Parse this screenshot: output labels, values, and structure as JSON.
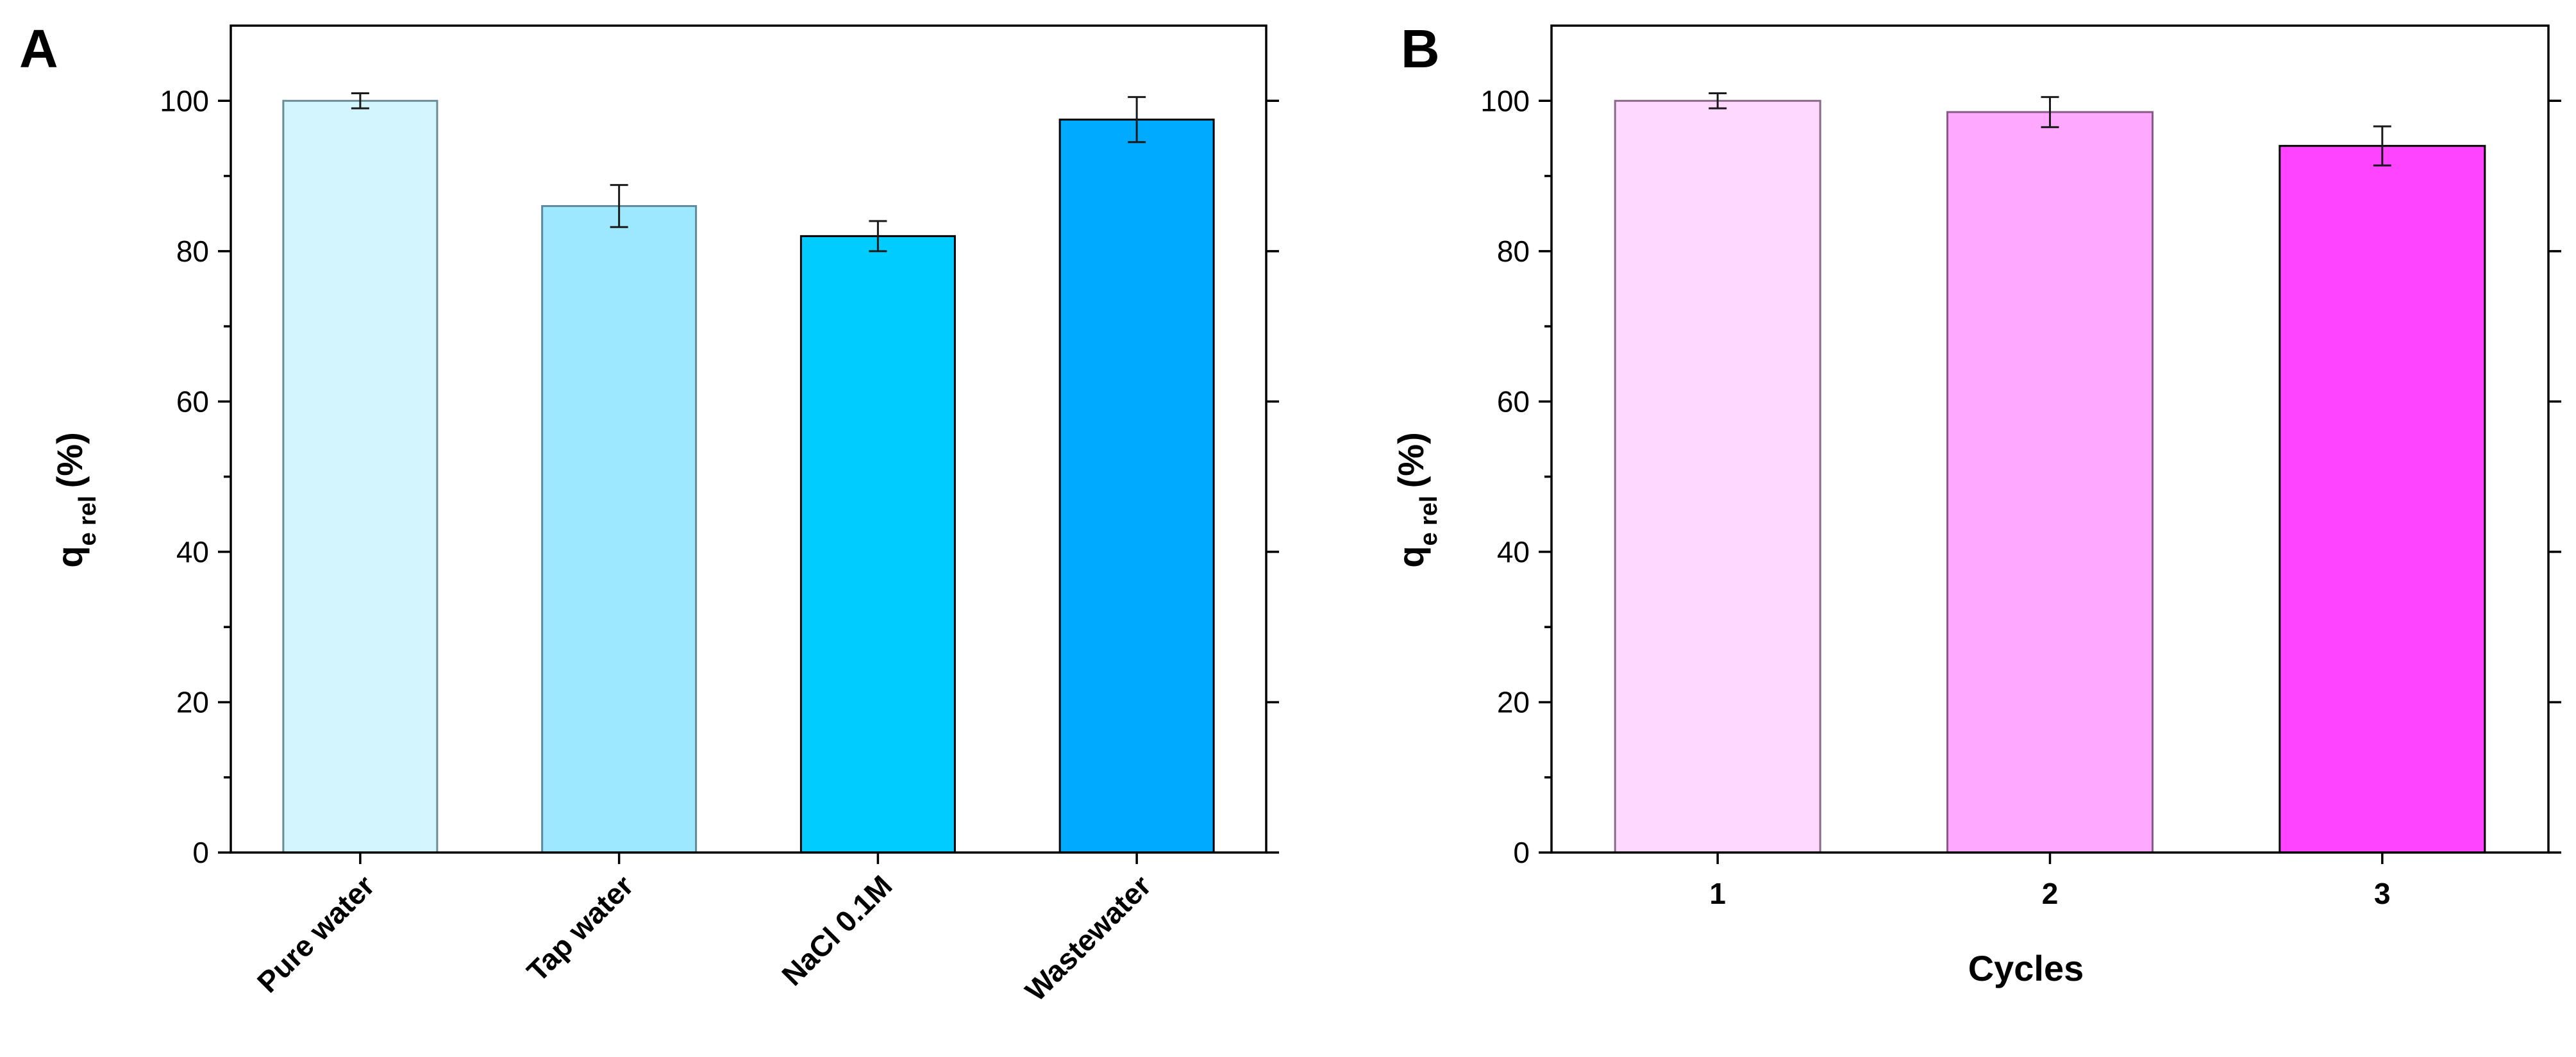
{
  "chart_data": [
    {
      "type": "bar",
      "panel_label": "A",
      "ylabel_main": "q",
      "ylabel_sub": "e rel",
      "ylabel_unit": "(%)",
      "xlabel": "",
      "ylim": [
        0,
        110
      ],
      "yticks": [
        0,
        20,
        40,
        60,
        80,
        100
      ],
      "yticks_text": [
        "0",
        "20",
        "40",
        "60",
        "80",
        "100"
      ],
      "categories": [
        "Pure water",
        "Tap water",
        "NaCl 0.1M",
        "Wastewater"
      ],
      "values": [
        100,
        86,
        82,
        97.5
      ],
      "errors": [
        1.0,
        2.8,
        2.0,
        3.0
      ],
      "colors": [
        "#D3F5FE",
        "#9DE8FF",
        "#00CCFF",
        "#00AAFF"
      ],
      "edge_colors": [
        "#6a8c94",
        "#5f8a99",
        "#000000",
        "#000000"
      ],
      "tick_rotation": -45
    },
    {
      "type": "bar",
      "panel_label": "B",
      "ylabel_main": "q",
      "ylabel_sub": "e rel",
      "ylabel_unit": "(%)",
      "xlabel": "Cycles",
      "ylim": [
        0,
        110
      ],
      "yticks": [
        0,
        20,
        40,
        60,
        80,
        100
      ],
      "yticks_text": [
        "0",
        "20",
        "40",
        "60",
        "80",
        "100"
      ],
      "categories": [
        "1",
        "2",
        "3"
      ],
      "values": [
        100,
        98.5,
        94
      ],
      "errors": [
        1.0,
        2.0,
        2.6
      ],
      "colors": [
        "#FFD8FF",
        "#FFA8FF",
        "#FF44FF"
      ],
      "edge_colors": [
        "#8a6a8a",
        "#8a5a8a",
        "#000000"
      ],
      "tick_rotation": 0
    }
  ]
}
